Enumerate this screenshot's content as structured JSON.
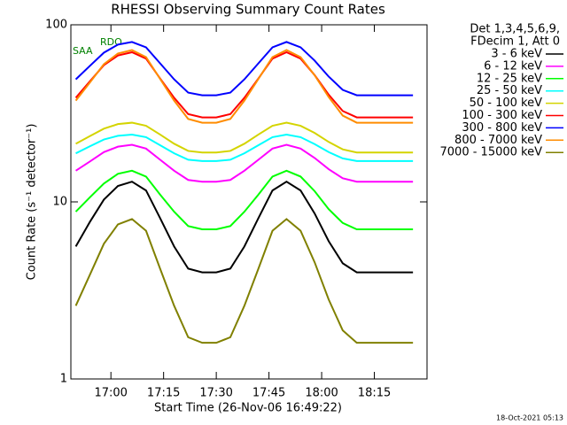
{
  "chart_data": {
    "type": "line",
    "title": "RHESSI Observing Summary Count Rates",
    "x_label": "Start Time (26-Nov-06 16:49:22)",
    "y_label": "Count Rate (s⁻¹ detector⁻¹)",
    "legend_title": [
      "Det 1,3,4,5,6,9,",
      "FDecim 1, Att 0"
    ],
    "annotations": [
      "RDO",
      "SAA"
    ],
    "footer": "18-Oct-2021 05:13",
    "log_y": true,
    "xlim": [
      1008.6,
      1110
    ],
    "ylim": [
      1,
      100
    ],
    "xticks": [
      {
        "value": 1020,
        "label": "17:00"
      },
      {
        "value": 1035,
        "label": "17:15"
      },
      {
        "value": 1050,
        "label": "17:30"
      },
      {
        "value": 1065,
        "label": "17:45"
      },
      {
        "value": 1080,
        "label": "18:00"
      },
      {
        "value": 1095,
        "label": "18:15"
      }
    ],
    "yticks": [
      1,
      10,
      100
    ],
    "x": [
      1010,
      1014,
      1018,
      1022,
      1026,
      1030,
      1034,
      1038,
      1042,
      1046,
      1050,
      1054,
      1058,
      1062,
      1066,
      1070,
      1074,
      1078,
      1082,
      1086,
      1090,
      1094,
      1098,
      1102,
      1106
    ],
    "series": [
      {
        "name": "3 - 6 keV",
        "color": "#000000",
        "values": [
          5.6,
          7.7,
          10.3,
          12.3,
          13,
          11.6,
          8.1,
          5.6,
          4.2,
          4,
          4,
          4.2,
          5.6,
          8.1,
          11.6,
          13,
          11.6,
          8.6,
          6,
          4.5,
          4,
          4,
          4,
          4,
          4
        ]
      },
      {
        "name": "6 - 12 keV",
        "color": "#ff00ff",
        "values": [
          15,
          16.9,
          19.1,
          20.5,
          21,
          20,
          17.3,
          15,
          13.3,
          13,
          13,
          13.3,
          15,
          17.3,
          20,
          21,
          20,
          17.7,
          15.3,
          13.6,
          13,
          13,
          13,
          13,
          13
        ]
      },
      {
        "name": "12 - 25 keV",
        "color": "#00ff00",
        "values": [
          8.8,
          10.6,
          12.7,
          14.4,
          15,
          13.9,
          11,
          8.8,
          7.3,
          7,
          7,
          7.3,
          8.8,
          11,
          13.9,
          15,
          13.9,
          11.5,
          9.1,
          7.6,
          7,
          7,
          7,
          7,
          7
        ]
      },
      {
        "name": "25 - 50 keV",
        "color": "#00ffff",
        "values": [
          18.8,
          20.6,
          22.5,
          23.6,
          24,
          23.2,
          20.9,
          18.8,
          17.3,
          17,
          17,
          17.3,
          18.8,
          20.9,
          23.2,
          24,
          23.2,
          21.2,
          19.1,
          17.6,
          17,
          17,
          17,
          17,
          17
        ]
      },
      {
        "name": "50 - 100 keV",
        "color": "#d4d400",
        "values": [
          21.3,
          23.5,
          25.9,
          27.5,
          28,
          26.9,
          24,
          21.3,
          19.4,
          19,
          19,
          19.4,
          21.3,
          24,
          26.9,
          28,
          26.9,
          24.5,
          21.8,
          19.8,
          19,
          19,
          19,
          19,
          19
        ]
      },
      {
        "name": "100 - 300 keV",
        "color": "#ff0000",
        "values": [
          38.7,
          47.9,
          59.2,
          67.1,
          70,
          64.4,
          49.8,
          38.7,
          31.3,
          30,
          30,
          31.3,
          38.7,
          49.8,
          64.4,
          70,
          64.4,
          52,
          40.3,
          32.6,
          30,
          30,
          30,
          30,
          30
        ]
      },
      {
        "name": "300 - 800 keV",
        "color": "#0000ff",
        "values": [
          49.2,
          58.6,
          69.6,
          77.3,
          80,
          74.6,
          60.6,
          49.2,
          41.4,
          40,
          40,
          41.4,
          49.2,
          60.6,
          74.6,
          80,
          74.6,
          62.8,
          51,
          42.9,
          40,
          40,
          40,
          40,
          40
        ]
      },
      {
        "name": "800 - 7000 keV",
        "color": "#ff8c00",
        "values": [
          37.3,
          47.2,
          59.9,
          68.8,
          72,
          65.7,
          49.5,
          37.3,
          29.4,
          28,
          28,
          29.4,
          37.3,
          49.5,
          65.7,
          72,
          65.7,
          51.9,
          39.1,
          30.7,
          28,
          28,
          28,
          28,
          28
        ]
      },
      {
        "name": "7000 - 15000 keV",
        "color": "#808000",
        "values": [
          2.59,
          3.87,
          5.8,
          7.46,
          8,
          6.87,
          4.2,
          2.59,
          1.72,
          1.6,
          1.6,
          1.72,
          2.59,
          4.2,
          6.87,
          8,
          6.87,
          4.56,
          2.81,
          1.88,
          1.6,
          1.6,
          1.6,
          1.6,
          1.6
        ]
      }
    ]
  }
}
